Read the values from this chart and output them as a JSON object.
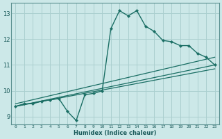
{
  "xlabel": "Humidex (Indice chaleur)",
  "bg_color": "#cce8e8",
  "line_color": "#1a6e64",
  "grid_color": "#aacfcf",
  "xlim": [
    -0.5,
    23.5
  ],
  "ylim": [
    8.7,
    13.4
  ],
  "yticks": [
    9,
    10,
    11,
    12,
    13
  ],
  "xticks": [
    0,
    1,
    2,
    3,
    4,
    5,
    6,
    7,
    8,
    9,
    10,
    11,
    12,
    13,
    14,
    15,
    16,
    17,
    18,
    19,
    20,
    21,
    22,
    23
  ],
  "main_x": [
    0,
    1,
    2,
    3,
    4,
    5,
    6,
    7,
    8,
    9,
    10,
    11,
    12,
    13,
    14,
    15,
    16,
    17,
    18,
    19,
    20,
    21,
    22,
    23
  ],
  "main_y": [
    9.4,
    9.5,
    9.5,
    9.6,
    9.65,
    9.7,
    9.2,
    8.85,
    9.85,
    9.9,
    10.0,
    12.4,
    13.1,
    12.9,
    13.1,
    12.5,
    12.3,
    11.95,
    11.9,
    11.75,
    11.75,
    11.45,
    11.3,
    11.0
  ],
  "trend1_x": [
    0,
    23
  ],
  "trend1_y": [
    9.4,
    11.0
  ],
  "trend2_x": [
    0,
    23
  ],
  "trend2_y": [
    9.5,
    11.3
  ],
  "trend3_x": [
    0,
    23
  ],
  "trend3_y": [
    9.4,
    10.85
  ]
}
